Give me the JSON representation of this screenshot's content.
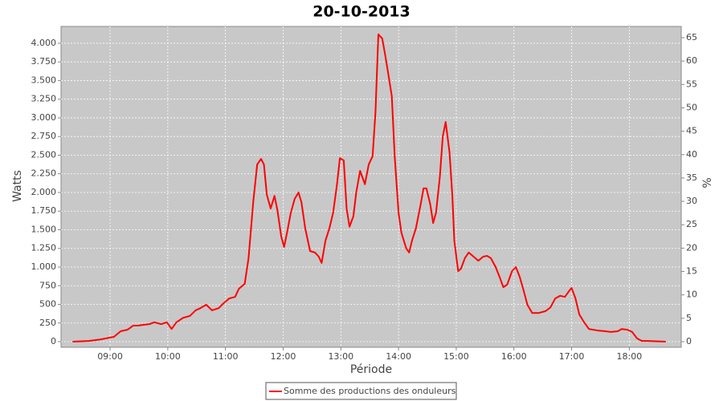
{
  "chart_data": {
    "type": "line",
    "title": "20-10-2013",
    "x_label": "Période",
    "y_label": "Watts",
    "y2_label": "%",
    "x": [
      "08:21",
      "08:38",
      "08:50",
      "08:54",
      "09:04",
      "09:11",
      "09:18",
      "09:24",
      "09:29",
      "09:34",
      "09:41",
      "09:46",
      "09:53",
      "09:59",
      "10:04",
      "10:09",
      "10:16",
      "10:23",
      "10:29",
      "10:34",
      "10:40",
      "10:46",
      "10:53",
      "10:58",
      "11:04",
      "11:10",
      "11:14",
      "11:20",
      "11:24",
      "11:29",
      "11:33",
      "11:37",
      "11:40",
      "11:43",
      "11:47",
      "11:51",
      "11:54",
      "11:58",
      "12:01",
      "12:04",
      "12:08",
      "12:12",
      "12:16",
      "12:19",
      "12:23",
      "12:28",
      "12:33",
      "12:37",
      "12:40",
      "12:44",
      "12:48",
      "12:52",
      "12:56",
      "12:59",
      "13:03",
      "13:06",
      "13:09",
      "13:13",
      "13:16",
      "13:20",
      "13:25",
      "13:29",
      "13:33",
      "13:36",
      "13:39",
      "13:43",
      "13:46",
      "13:49",
      "13:53",
      "13:56",
      "14:00",
      "14:03",
      "14:08",
      "14:11",
      "14:14",
      "14:18",
      "14:23",
      "14:26",
      "14:29",
      "14:33",
      "14:36",
      "14:39",
      "14:43",
      "14:46",
      "14:49",
      "14:53",
      "14:56",
      "14:58",
      "15:02",
      "15:05",
      "15:09",
      "15:13",
      "15:18",
      "15:23",
      "15:28",
      "15:32",
      "15:36",
      "15:41",
      "15:45",
      "15:49",
      "15:53",
      "15:58",
      "16:02",
      "16:06",
      "16:10",
      "16:14",
      "16:19",
      "16:26",
      "16:33",
      "16:38",
      "16:43",
      "16:48",
      "16:53",
      "16:58",
      "17:00",
      "17:04",
      "17:08",
      "17:13",
      "17:18",
      "17:27",
      "17:35",
      "17:41",
      "17:48",
      "17:52",
      "17:58",
      "18:03",
      "18:08",
      "18:13",
      "18:19",
      "18:38"
    ],
    "series": [
      {
        "name": "Somme des productions des onduleurs",
        "color": "#ff0000",
        "values": [
          0,
          10,
          30,
          40,
          65,
          140,
          160,
          215,
          215,
          225,
          235,
          260,
          235,
          260,
          170,
          260,
          320,
          345,
          420,
          450,
          495,
          420,
          450,
          515,
          580,
          600,
          710,
          775,
          1120,
          1890,
          2375,
          2450,
          2375,
          1970,
          1785,
          1955,
          1765,
          1410,
          1270,
          1460,
          1730,
          1915,
          2000,
          1870,
          1515,
          1215,
          1195,
          1140,
          1055,
          1355,
          1515,
          1730,
          2110,
          2460,
          2430,
          1785,
          1540,
          1680,
          2000,
          2290,
          2110,
          2375,
          2485,
          3075,
          4120,
          4065,
          3850,
          3615,
          3290,
          2485,
          1730,
          1460,
          1250,
          1195,
          1355,
          1515,
          1840,
          2055,
          2055,
          1840,
          1590,
          1730,
          2215,
          2750,
          2945,
          2540,
          1945,
          1355,
          945,
          980,
          1120,
          1195,
          1140,
          1085,
          1140,
          1150,
          1120,
          1000,
          870,
          730,
          765,
          945,
          1000,
          870,
          690,
          495,
          385,
          385,
          410,
          460,
          580,
          615,
          600,
          690,
          720,
          580,
          365,
          260,
          170,
          150,
          140,
          130,
          140,
          170,
          160,
          130,
          45,
          10,
          10,
          0
        ]
      }
    ],
    "xlim": [
      "08:09",
      "18:54"
    ],
    "xticks": [
      "09:00",
      "10:00",
      "11:00",
      "12:00",
      "13:00",
      "14:00",
      "15:00",
      "16:00",
      "17:00",
      "18:00"
    ],
    "ylim": [
      -75,
      4225
    ],
    "yticks": [
      0,
      250,
      500,
      750,
      {
        "value": 1000,
        "label": "1.000"
      },
      {
        "value": 1250,
        "label": "1.250"
      },
      {
        "value": 1500,
        "label": "1.500"
      },
      {
        "value": 1750,
        "label": "1.750"
      },
      {
        "value": 2000,
        "label": "2.000"
      },
      {
        "value": 2250,
        "label": "2.250"
      },
      {
        "value": 2500,
        "label": "2.500"
      },
      {
        "value": 2750,
        "label": "2.750"
      },
      {
        "value": 3000,
        "label": "3.000"
      },
      {
        "value": 3250,
        "label": "3.250"
      },
      {
        "value": 3500,
        "label": "3.500"
      },
      {
        "value": 3750,
        "label": "3.750"
      },
      {
        "value": 4000,
        "label": "4.000"
      }
    ],
    "y2lim": [
      -1.2,
      67.4
    ],
    "y2ticks": [
      0,
      5,
      10,
      15,
      20,
      25,
      30,
      35,
      40,
      45,
      50,
      55,
      60,
      65
    ],
    "grid": true,
    "plot_background": "#c8c8c8",
    "legend": "bottom"
  }
}
